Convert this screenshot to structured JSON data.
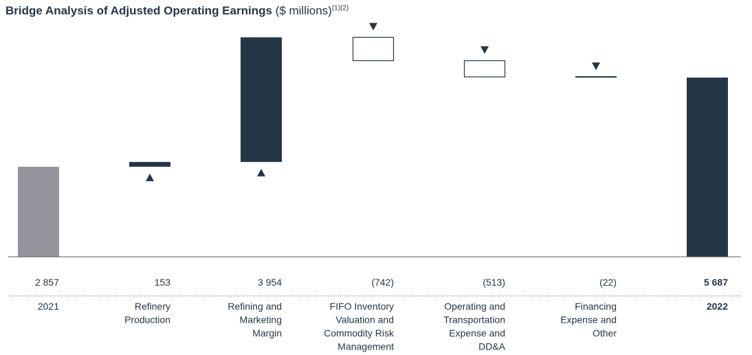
{
  "title": {
    "main": "Bridge Analysis of Adjusted Operating Earnings",
    "unit": "($ millions)",
    "notes": "(1)(2)"
  },
  "chart_data": {
    "type": "bar",
    "subtype": "waterfall",
    "title": "Bridge Analysis of Adjusted Operating Earnings ($ millions)",
    "categories": [
      [
        "2021"
      ],
      [
        "Refinery",
        "Production"
      ],
      [
        "Refining and",
        "Marketing",
        "Margin"
      ],
      [
        "FIFO Inventory",
        "Valuation and",
        "Commodity Risk",
        "Management"
      ],
      [
        "Operating and",
        "Transportation",
        "Expense and",
        "DD&A"
      ],
      [
        "Financing",
        "Expense and",
        "Other"
      ],
      [
        "2022"
      ]
    ],
    "values": [
      2857,
      153,
      3954,
      -742,
      -513,
      -22,
      5687
    ],
    "value_labels": [
      "2 857",
      "153",
      "3 954",
      "(742)",
      "(513)",
      "(22)",
      "5 687"
    ],
    "kinds": [
      "start",
      "increase",
      "increase",
      "decrease",
      "decrease",
      "decrease",
      "total"
    ],
    "ylim": [
      0,
      7200
    ],
    "colors": {
      "start": "#94959c",
      "increase": "#243646",
      "decrease_fill": "#ffffff",
      "decrease_stroke": "#243646",
      "total": "#243646",
      "text": "#243646",
      "axis": "#555555"
    }
  }
}
